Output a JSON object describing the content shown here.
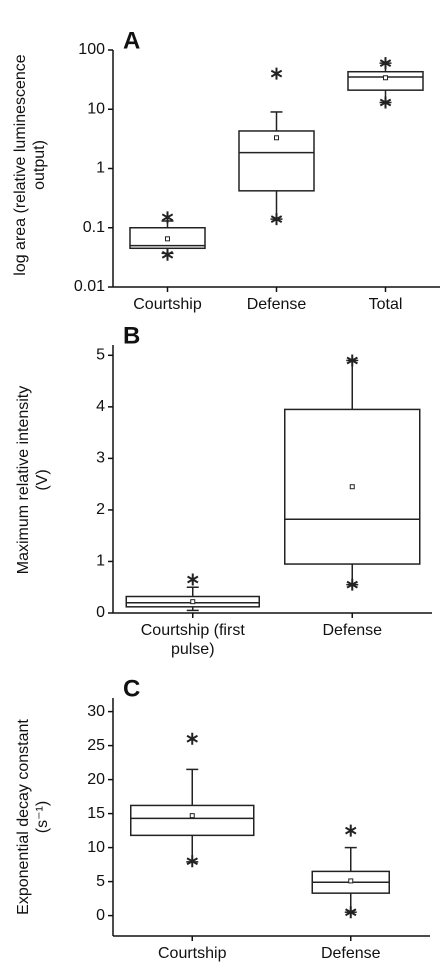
{
  "chart_data": [
    {
      "type": "box",
      "label": "A",
      "ylabel": "log area (relative luminescence output)",
      "log_scale": true,
      "categories": [
        "Courtship",
        "Defense",
        "Total"
      ],
      "boxes": [
        {
          "min": 0.037,
          "q1": 0.045,
          "median": 0.05,
          "q3": 0.1,
          "max": 0.13,
          "mean": 0.065,
          "outliers": [
            0.15,
            0.035
          ]
        },
        {
          "min": 0.14,
          "q1": 0.42,
          "median": 1.85,
          "q3": 4.3,
          "max": 9,
          "mean": 3.3,
          "outliers": [
            40,
            0.14
          ]
        },
        {
          "min": 13,
          "q1": 21,
          "median": 35,
          "q3": 43,
          "max": 60,
          "mean": 34,
          "outliers": [
            60,
            13
          ]
        }
      ],
      "ylim": [
        0.01,
        100
      ],
      "yticks": [
        0.01,
        0.1,
        1,
        10,
        100
      ],
      "color": "#222222"
    },
    {
      "type": "box",
      "label": "B",
      "ylabel": "Maximum relative intensity (V)",
      "log_scale": false,
      "categories": [
        "Courtship (first pulse)",
        "Defense"
      ],
      "boxes": [
        {
          "min": 0.05,
          "q1": 0.12,
          "median": 0.2,
          "q3": 0.32,
          "max": 0.5,
          "mean": 0.22,
          "outliers": [
            0.65
          ]
        },
        {
          "min": 0.55,
          "q1": 0.95,
          "median": 1.82,
          "q3": 3.95,
          "max": 4.9,
          "mean": 2.45,
          "outliers": [
            4.9,
            0.55
          ]
        }
      ],
      "ylim": [
        0,
        5.2
      ],
      "yticks": [
        0,
        1,
        2,
        3,
        4,
        5
      ],
      "color": "#222222"
    },
    {
      "type": "box",
      "label": "C",
      "ylabel": "Exponential decay constant (s⁻¹)",
      "log_scale": false,
      "categories": [
        "Courtship",
        "Defense"
      ],
      "boxes": [
        {
          "min": 7.9,
          "q1": 11.8,
          "median": 14.3,
          "q3": 16.2,
          "max": 21.5,
          "mean": 14.7,
          "outliers": [
            26,
            8
          ]
        },
        {
          "min": 0.5,
          "q1": 3.3,
          "median": 4.9,
          "q3": 6.5,
          "max": 10,
          "mean": 5.1,
          "outliers": [
            12.5,
            0.5
          ]
        }
      ],
      "ylim": [
        -3,
        32
      ],
      "yticks": [
        0,
        5,
        10,
        15,
        20,
        25,
        30
      ],
      "color": "#222222"
    }
  ]
}
